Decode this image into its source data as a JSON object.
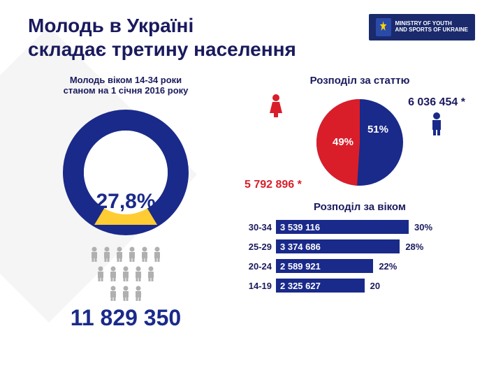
{
  "title_line1": "Молодь в Україні",
  "title_line2": "складає третину населення",
  "logo": {
    "line1": "MINISTRY OF YOUTH",
    "line2": "AND SPORTS OF UKRAINE"
  },
  "left": {
    "subtitle_line1": "Молодь віком 14-34 роки",
    "subtitle_line2": "станом на 1 січня 2016 року",
    "donut": {
      "percent_label": "27,8%",
      "percent_value": 27.8,
      "ring_color": "#1a2a8a",
      "ring_width": 30,
      "inner_color": "#ffffff",
      "triangle_color": "#ffcc33"
    },
    "people_icon_color": "#b0b0b0",
    "people_rows": [
      6,
      5,
      3
    ],
    "total": "11 829 350"
  },
  "gender": {
    "title": "Розподіл за статтю",
    "pie": {
      "female": {
        "pct": 49,
        "label": "49%",
        "color": "#d91e2a",
        "count": "5 792 896 *",
        "icon_color": "#d91e2a"
      },
      "male": {
        "pct": 51,
        "label": "51%",
        "color": "#1a2a8a",
        "count": "6 036 454 *",
        "icon_color": "#1a2a8a"
      }
    }
  },
  "age": {
    "title": "Розподіл за віком",
    "max_pct": 30,
    "bar_color": "#1a2a8a",
    "rows": [
      {
        "range": "30-34",
        "value": "3 539 116",
        "pct": 30,
        "pct_label": "30%"
      },
      {
        "range": "25-29",
        "value": "3 374 686",
        "pct": 28,
        "pct_label": "28%"
      },
      {
        "range": "20-24",
        "value": "2 589 921",
        "pct": 22,
        "pct_label": "22%"
      },
      {
        "range": "14-19",
        "value": "2 325 627",
        "pct": 20,
        "pct_label": "20"
      }
    ]
  },
  "colors": {
    "title": "#1a1a5e",
    "accent": "#1a2a8a",
    "female": "#d91e2a",
    "bg": "#ffffff"
  }
}
